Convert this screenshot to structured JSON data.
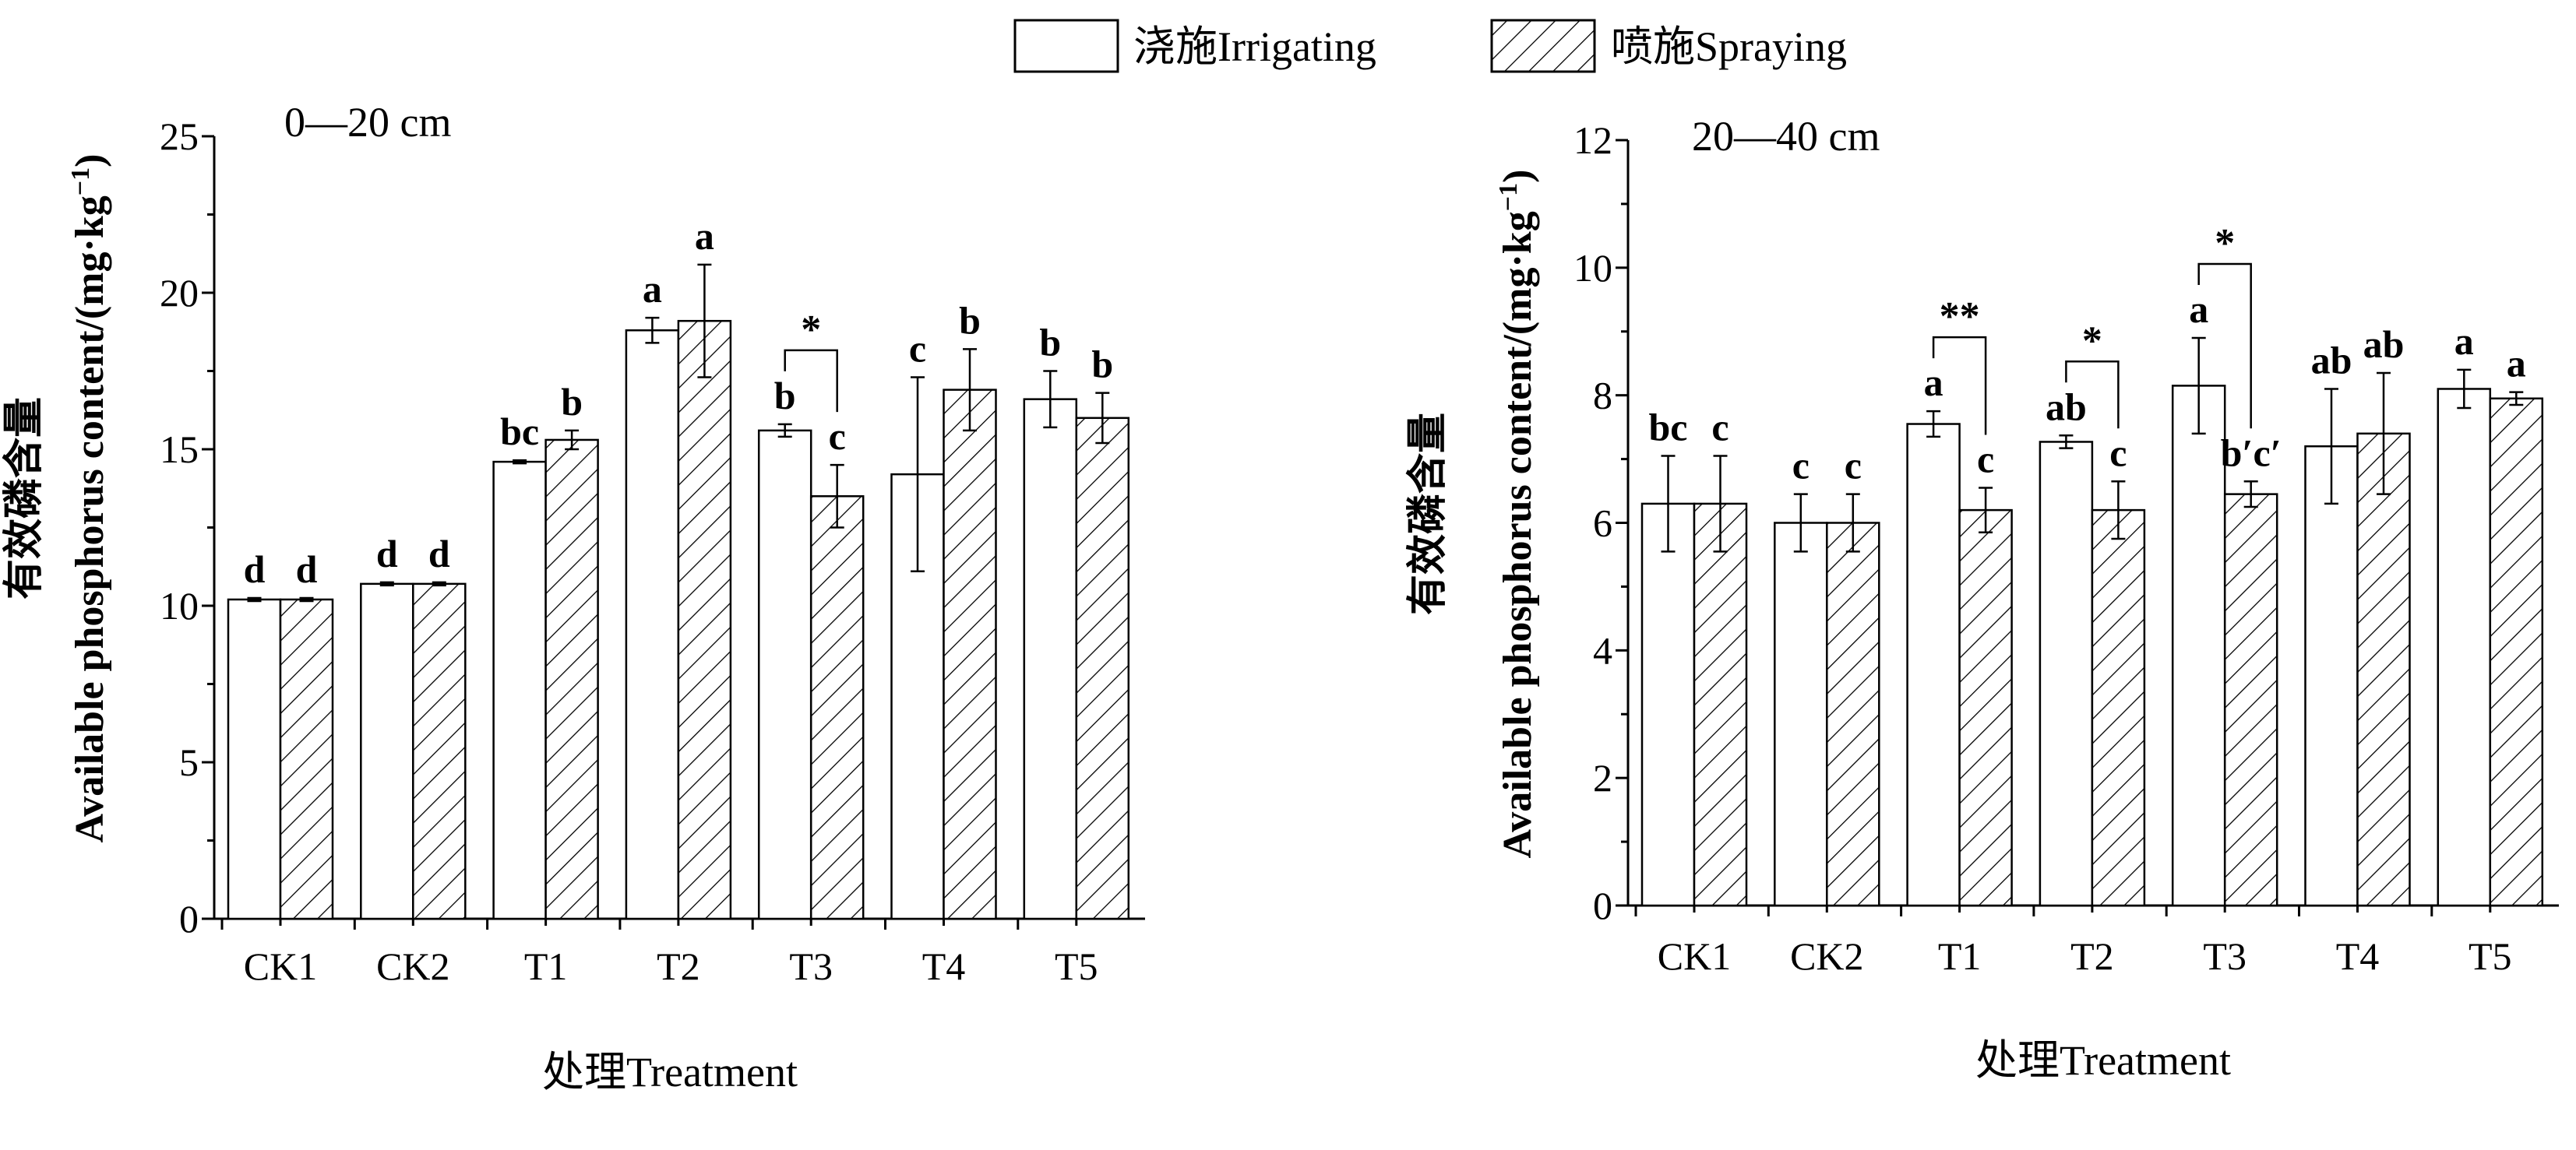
{
  "legend": {
    "irrigating": "浇施Irrigating",
    "spraying": "喷施Spraying"
  },
  "chart_data": [
    {
      "type": "bar",
      "panel_label": "0—20 cm",
      "xlabel": "处理Treatment",
      "ylabel": "有效磷含量 Available phosphorus content/(mg·kg⁻¹)",
      "ylabel_cn": "有效磷含量",
      "ylabel_en": "Available phosphorus content/(mg·kg",
      "ylabel_sup": "−1",
      "ylabel_close": ")",
      "ylim": [
        0,
        25
      ],
      "yticks": [
        0,
        5,
        10,
        15,
        20,
        25
      ],
      "grid": false,
      "categories": [
        "CK1",
        "CK2",
        "T1",
        "T2",
        "T3",
        "T4",
        "T5"
      ],
      "series": [
        {
          "name": "浇施Irrigating",
          "values": [
            10.2,
            10.7,
            14.6,
            18.8,
            15.6,
            14.2,
            16.6
          ],
          "errors": [
            0.05,
            0.05,
            0.05,
            0.4,
            0.2,
            3.1,
            0.9
          ],
          "letters": [
            "d",
            "d",
            "bc",
            "a",
            "b",
            "c",
            "b"
          ]
        },
        {
          "name": "喷施Spraying",
          "values": [
            10.2,
            10.7,
            15.3,
            19.1,
            13.5,
            16.9,
            16.0
          ],
          "errors": [
            0.05,
            0.05,
            0.3,
            1.8,
            1.0,
            1.3,
            0.8
          ],
          "letters": [
            "d",
            "d",
            "b",
            "a",
            "c",
            "b",
            "b"
          ]
        }
      ],
      "significance": [
        {
          "category": "T3",
          "label": "*"
        }
      ]
    },
    {
      "type": "bar",
      "panel_label": "20—40 cm",
      "xlabel": "处理Treatment",
      "ylabel": "有效磷含量 Available phosphorus content/(mg·kg⁻¹)",
      "ylabel_cn": "有效磷含量",
      "ylabel_en": "Available phosphorus content/(mg·kg",
      "ylabel_sup": "−1",
      "ylabel_close": ")",
      "ylim": [
        0,
        12
      ],
      "yticks": [
        0,
        2,
        4,
        6,
        8,
        10,
        12
      ],
      "grid": false,
      "categories": [
        "CK1",
        "CK2",
        "T1",
        "T2",
        "T3",
        "T4",
        "T5"
      ],
      "series": [
        {
          "name": "浇施Irrigating",
          "values": [
            6.3,
            6.0,
            7.55,
            7.27,
            8.15,
            7.2,
            8.1
          ],
          "errors": [
            0.75,
            0.45,
            0.2,
            0.1,
            0.75,
            0.9,
            0.3
          ],
          "letters": [
            "bc",
            "c",
            "a",
            "ab",
            "a",
            "ab",
            "a"
          ]
        },
        {
          "name": "喷施Spraying",
          "values": [
            6.3,
            6.0,
            6.2,
            6.2,
            6.45,
            7.4,
            7.95
          ],
          "errors": [
            0.75,
            0.45,
            0.35,
            0.45,
            0.2,
            0.95,
            0.1
          ],
          "letters": [
            "c",
            "c",
            "c",
            "c",
            "b′c′",
            "ab",
            "a"
          ]
        }
      ],
      "significance": [
        {
          "category": "T1",
          "label": "**"
        },
        {
          "category": "T2",
          "label": "*"
        },
        {
          "category": "T3",
          "label": "*"
        }
      ]
    }
  ]
}
